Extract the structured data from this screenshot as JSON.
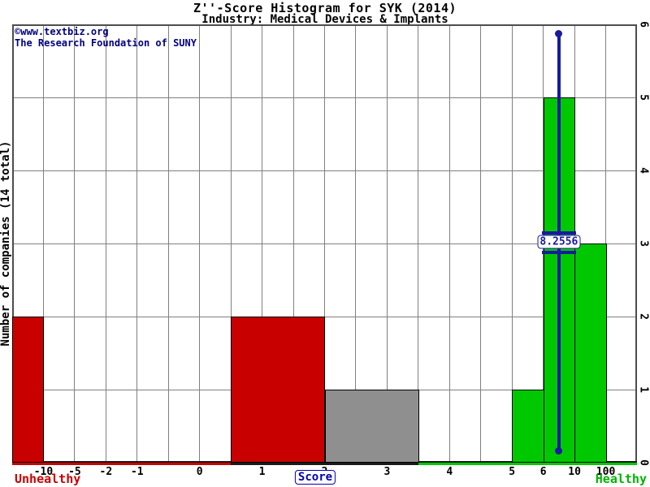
{
  "header": {
    "title": "Z''-Score Histogram for SYK (2014)",
    "subtitle": "Industry: Medical Devices & Implants"
  },
  "watermark": {
    "line1": "©www.textbiz.org",
    "line2": "The Research Foundation of SUNY"
  },
  "chart_data": {
    "type": "bar",
    "title": "Z''-Score Histogram for SYK (2014)",
    "subtitle": "Industry: Medical Devices & Implants",
    "xlabel": "Score",
    "ylabel": "Number of companies (14 total)",
    "ylim": [
      0,
      6
    ],
    "grid": true,
    "legend": "none",
    "y_ticks_right": [
      0,
      1,
      2,
      3,
      4,
      5,
      6
    ],
    "x_axis_note": "non-linear score axis; 20 equal slots from left edge to right edge",
    "total_slots": 20,
    "x_ticks": [
      {
        "slot": 1,
        "label": "-10"
      },
      {
        "slot": 2,
        "label": "-5"
      },
      {
        "slot": 3,
        "label": "-2"
      },
      {
        "slot": 4,
        "label": "-1"
      },
      {
        "slot": 6,
        "label": "0"
      },
      {
        "slot": 8,
        "label": "1"
      },
      {
        "slot": 10,
        "label": "2"
      },
      {
        "slot": 12,
        "label": "3"
      },
      {
        "slot": 14,
        "label": "4"
      },
      {
        "slot": 16,
        "label": "5"
      },
      {
        "slot": 17,
        "label": "6"
      },
      {
        "slot": 18,
        "label": "10"
      },
      {
        "slot": 19,
        "label": "100"
      }
    ],
    "bins": [
      {
        "score_range": "below -10",
        "count": 2,
        "zone": "unhealthy",
        "from_slot": 0,
        "to_slot": 1
      },
      {
        "score_range": "0.5 to 2",
        "count": 2,
        "zone": "unhealthy",
        "from_slot": 7,
        "to_slot": 10
      },
      {
        "score_range": "2 to 3.5",
        "count": 1,
        "zone": "gray",
        "from_slot": 10,
        "to_slot": 13
      },
      {
        "score_range": "5 to 6",
        "count": 1,
        "zone": "healthy",
        "from_slot": 16,
        "to_slot": 17
      },
      {
        "score_range": "6 to 10",
        "count": 5,
        "zone": "healthy",
        "from_slot": 17,
        "to_slot": 18
      },
      {
        "score_range": "10 to 100",
        "count": 3,
        "zone": "healthy",
        "from_slot": 18,
        "to_slot": 19
      }
    ],
    "marker": {
      "label": "8.2556",
      "value": 8.2556,
      "x_slot": 17.5,
      "top_value": 5.88,
      "bottom_value": 0.155,
      "crossbar_values": [
        3.14,
        2.88
      ],
      "crossbar_from_slot": 16.95,
      "crossbar_to_slot": 18.05,
      "label_value": 3.02
    },
    "zones": {
      "unhealthy_label": "Unhealthy",
      "healthy_label": "Healthy"
    },
    "axis_segments": [
      {
        "from_slot": 0,
        "to_slot": 7,
        "color_key": "unhealthy"
      },
      {
        "from_slot": 7,
        "to_slot": 13,
        "color_key": "dark"
      },
      {
        "from_slot": 13,
        "to_slot": 20,
        "color_key": "healthy"
      }
    ],
    "colors": {
      "unhealthy": "#c80000",
      "gray": "#8f8f8f",
      "healthy": "#00c800",
      "dark": "#1a1a1a",
      "marker": "#1a1a9e",
      "grid": "#808080",
      "border": "#4d4d4d",
      "watermark": "#000080",
      "unhealthy_text": "#c80000",
      "healthy_text": "#00b400"
    }
  }
}
